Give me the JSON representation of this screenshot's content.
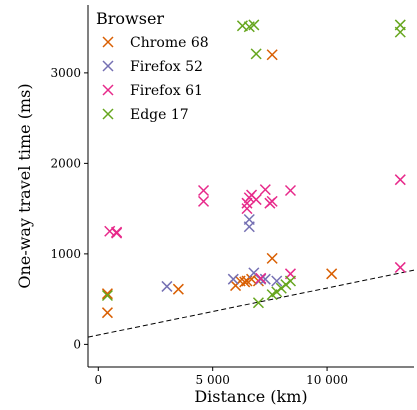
{
  "chart_data": {
    "type": "scatter",
    "xlabel": "Distance (km)",
    "ylabel": "One-way travel time (ms)",
    "xlim": [
      -450,
      13800
    ],
    "ylim": [
      -250,
      3750
    ],
    "xticks": [
      0,
      5000,
      10000
    ],
    "xtick_labels": [
      "0",
      "5 000",
      "10 000"
    ],
    "yticks": [
      0,
      1000,
      2000,
      3000
    ],
    "ytick_labels": [
      "0",
      "1000",
      "2000",
      "3000"
    ],
    "grid": false,
    "legend": {
      "title": "Browser",
      "placement": "top-left"
    },
    "reference_line": {
      "style": "dashed",
      "x": [
        -450,
        13800
      ],
      "y": [
        80,
        820
      ]
    },
    "series": [
      {
        "name": "Chrome 68",
        "color": "#d95f02",
        "points": [
          [
            400,
            560
          ],
          [
            400,
            350
          ],
          [
            3500,
            610
          ],
          [
            6000,
            650
          ],
          [
            6200,
            700
          ],
          [
            6400,
            690
          ],
          [
            6500,
            700
          ],
          [
            6700,
            720
          ],
          [
            7000,
            700
          ],
          [
            7600,
            950
          ],
          [
            7600,
            3200
          ],
          [
            10200,
            780
          ]
        ]
      },
      {
        "name": "Firefox 52",
        "color": "#7570b3",
        "points": [
          [
            3000,
            640
          ],
          [
            5900,
            720
          ],
          [
            6600,
            1300
          ],
          [
            6600,
            1380
          ],
          [
            6800,
            790
          ],
          [
            7100,
            720
          ],
          [
            7300,
            720
          ],
          [
            7800,
            700
          ]
        ]
      },
      {
        "name": "Firefox 61",
        "color": "#e7298a",
        "points": [
          [
            500,
            1250
          ],
          [
            800,
            1230
          ],
          [
            800,
            1240
          ],
          [
            4600,
            1700
          ],
          [
            4600,
            1580
          ],
          [
            6500,
            1500
          ],
          [
            6500,
            1560
          ],
          [
            6600,
            1620
          ],
          [
            6700,
            1650
          ],
          [
            6900,
            1600
          ],
          [
            7100,
            730
          ],
          [
            7300,
            1710
          ],
          [
            7500,
            1560
          ],
          [
            7600,
            1580
          ],
          [
            8400,
            1700
          ],
          [
            8400,
            780
          ],
          [
            13200,
            1820
          ],
          [
            13200,
            850
          ]
        ]
      },
      {
        "name": "Edge 17",
        "color": "#66a61e",
        "points": [
          [
            400,
            540
          ],
          [
            6300,
            3520
          ],
          [
            6600,
            3510
          ],
          [
            6800,
            3530
          ],
          [
            6900,
            3210
          ],
          [
            7000,
            460
          ],
          [
            7600,
            550
          ],
          [
            7800,
            580
          ],
          [
            8000,
            620
          ],
          [
            8200,
            660
          ],
          [
            8400,
            700
          ],
          [
            13200,
            3530
          ],
          [
            13200,
            3450
          ]
        ]
      }
    ]
  }
}
